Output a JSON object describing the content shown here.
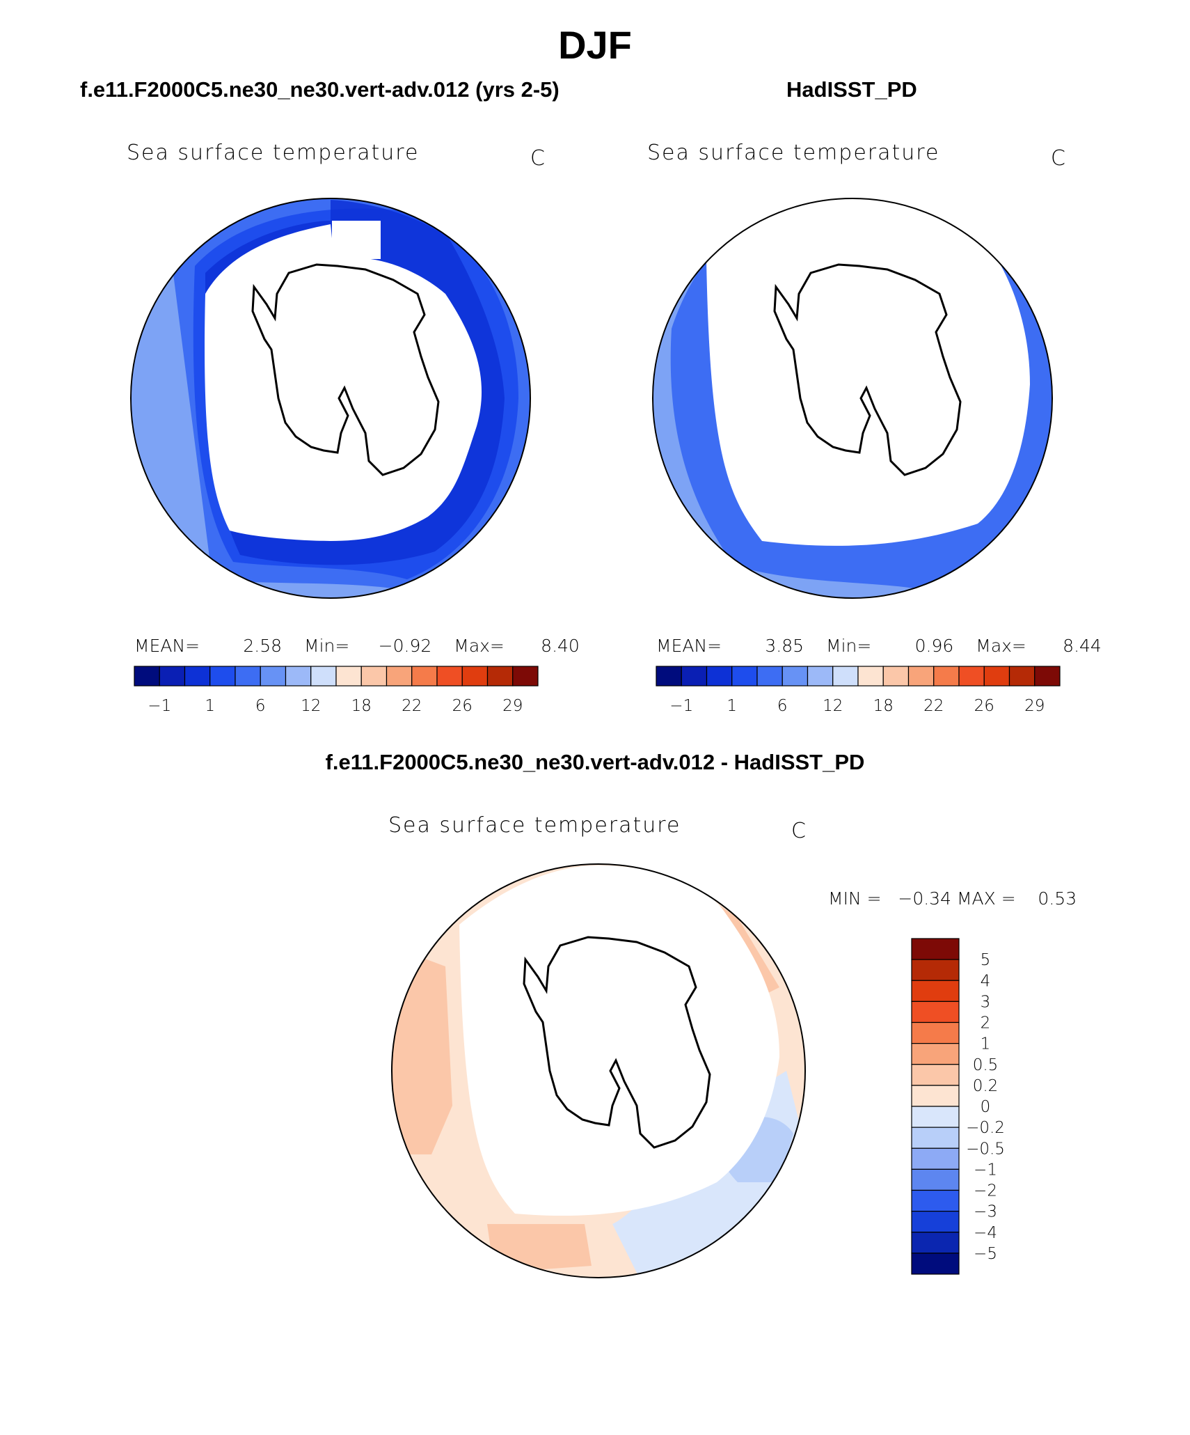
{
  "main_title": "DJF",
  "panels": [
    {
      "case_title": "f.e11.F2000C5.ne30_ne30.vert-adv.012 (yrs 2-5)",
      "plot_label": "Sea surface temperature",
      "unit": "C",
      "stats": {
        "mean_label": "MEAN=",
        "mean": "2.58",
        "min_label": "Min=",
        "min": "−0.92",
        "max_label": "Max=",
        "max": "8.40"
      }
    },
    {
      "case_title": "HadISST_PD",
      "plot_label": "Sea surface temperature",
      "unit": "C",
      "stats": {
        "mean_label": "MEAN=",
        "mean": "3.85",
        "min_label": "Min=",
        "min": "0.96",
        "max_label": "Max=",
        "max": "8.44"
      }
    }
  ],
  "diff_panel": {
    "case_title": "f.e11.F2000C5.ne30_ne30.vert-adv.012 - HadISST_PD",
    "plot_label": "Sea surface temperature",
    "unit": "C",
    "min_text": "MIN =   −0.34",
    "max_text": "MAX =    0.53"
  },
  "chart_data": [
    {
      "type": "heatmap",
      "title": "Sea surface temperature",
      "subtitle": "f.e11.F2000C5.ne30_ne30.vert-adv.012 (yrs 2-5)",
      "projection": "south polar stereographic",
      "units": "C",
      "mean": 2.58,
      "min": -0.92,
      "max": 8.4,
      "colorbar": {
        "orientation": "horizontal",
        "tick_labels": [
          "−1",
          "1",
          "6",
          "12",
          "18",
          "22",
          "26",
          "29"
        ],
        "colors": [
          "#000c7d",
          "#0a1fb4",
          "#0d31d6",
          "#1e4ded",
          "#3d6df3",
          "#6792f5",
          "#9cb9f8",
          "#cfdffb",
          "#fde4d2",
          "#fbc7a9",
          "#f8a47a",
          "#f57b4a",
          "#ef4f24",
          "#e03d0f",
          "#b52a06",
          "#7d0a06"
        ]
      }
    },
    {
      "type": "heatmap",
      "title": "Sea surface temperature",
      "subtitle": "HadISST_PD",
      "projection": "south polar stereographic",
      "units": "C",
      "mean": 3.85,
      "min": 0.96,
      "max": 8.44,
      "colorbar": {
        "orientation": "horizontal",
        "tick_labels": [
          "−1",
          "1",
          "6",
          "12",
          "18",
          "22",
          "26",
          "29"
        ],
        "colors": [
          "#000c7d",
          "#0a1fb4",
          "#0d31d6",
          "#1e4ded",
          "#3d6df3",
          "#6792f5",
          "#9cb9f8",
          "#cfdffb",
          "#fde4d2",
          "#fbc7a9",
          "#f8a47a",
          "#f57b4a",
          "#ef4f24",
          "#e03d0f",
          "#b52a06",
          "#7d0a06"
        ]
      }
    },
    {
      "type": "heatmap",
      "title": "Sea surface temperature",
      "subtitle": "f.e11.F2000C5.ne30_ne30.vert-adv.012 - HadISST_PD",
      "projection": "south polar stereographic",
      "units": "C",
      "min": -0.34,
      "max": 0.53,
      "colorbar": {
        "orientation": "vertical",
        "tick_labels": [
          "5",
          "4",
          "3",
          "2",
          "1",
          "0.5",
          "0.2",
          "0",
          "−0.2",
          "−0.5",
          "−1",
          "−2",
          "−3",
          "−4",
          "−5"
        ],
        "colors": [
          "#7d0a06",
          "#b52a06",
          "#e03d0f",
          "#ef4f24",
          "#f57b4a",
          "#f8a47a",
          "#fbc7a9",
          "#fde4d2",
          "#d9e6fb",
          "#b8cff9",
          "#8daaf5",
          "#5d86f0",
          "#2d5bee",
          "#1640d9",
          "#0b26b0",
          "#000c7d"
        ]
      }
    }
  ]
}
